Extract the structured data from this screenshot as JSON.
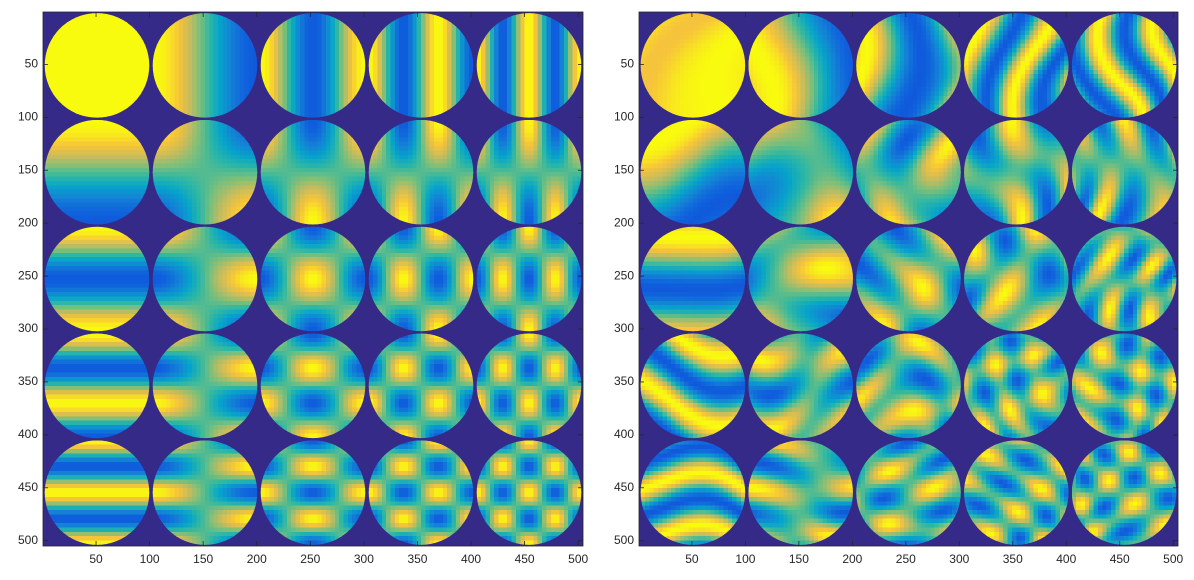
{
  "chart_data": [
    {
      "type": "image",
      "xlim": [
        0.5,
        504.5
      ],
      "ylim": [
        0.5,
        505
      ],
      "y_reversed": true,
      "xticks": [
        50,
        100,
        150,
        200,
        250,
        300,
        350,
        400,
        450,
        500
      ],
      "yticks": [
        50,
        100,
        150,
        200,
        250,
        300,
        350,
        400,
        450,
        500
      ],
      "background": "#352a87",
      "colormap": [
        "#352a87",
        "#0f5cdd",
        "#1481d6",
        "#06a4ca",
        "#2eb7a4",
        "#7abf7c",
        "#c4bc5e",
        "#f7c43a",
        "#f9fb0e"
      ],
      "modes": [
        [
          0,
          0
        ],
        [
          0,
          1
        ],
        [
          0,
          2
        ],
        [
          0,
          3
        ],
        [
          0,
          4
        ],
        [
          1,
          0
        ],
        [
          1,
          1
        ],
        [
          1,
          2
        ],
        [
          1,
          3
        ],
        [
          1,
          4
        ],
        [
          2,
          0
        ],
        [
          2,
          1
        ],
        [
          2,
          2
        ],
        [
          2,
          3
        ],
        [
          2,
          4
        ],
        [
          3,
          0
        ],
        [
          3,
          1
        ],
        [
          3,
          2
        ],
        [
          3,
          3
        ],
        [
          3,
          4
        ],
        [
          4,
          0
        ],
        [
          4,
          1
        ],
        [
          4,
          2
        ],
        [
          4,
          3
        ],
        [
          4,
          4
        ]
      ]
    },
    {
      "type": "image",
      "xlim": [
        0.5,
        504.5
      ],
      "ylim": [
        0.5,
        505
      ],
      "y_reversed": true,
      "xticks": [
        50,
        100,
        150,
        200,
        250,
        300,
        350,
        400,
        450,
        500
      ],
      "yticks": [
        50,
        100,
        150,
        200,
        250,
        300,
        350,
        400,
        450,
        500
      ],
      "background": "#352a87",
      "colormap": [
        "#352a87",
        "#0f5cdd",
        "#1481d6",
        "#06a4ca",
        "#2eb7a4",
        "#7abf7c",
        "#c4bc5e",
        "#f7c43a",
        "#f9fb0e"
      ],
      "modes": [
        [
          0,
          0
        ],
        [
          0,
          1
        ],
        [
          0,
          2
        ],
        [
          0,
          3
        ],
        [
          0,
          4
        ],
        [
          1,
          0
        ],
        [
          1,
          1
        ],
        [
          1,
          2
        ],
        [
          1,
          3
        ],
        [
          1,
          4
        ],
        [
          2,
          0
        ],
        [
          2,
          1
        ],
        [
          2,
          2
        ],
        [
          2,
          3
        ],
        [
          2,
          4
        ],
        [
          3,
          0
        ],
        [
          3,
          1
        ],
        [
          3,
          2
        ],
        [
          3,
          3
        ],
        [
          3,
          4
        ],
        [
          4,
          0
        ],
        [
          4,
          1
        ],
        [
          4,
          2
        ],
        [
          4,
          3
        ],
        [
          4,
          4
        ]
      ],
      "warped": true
    }
  ]
}
